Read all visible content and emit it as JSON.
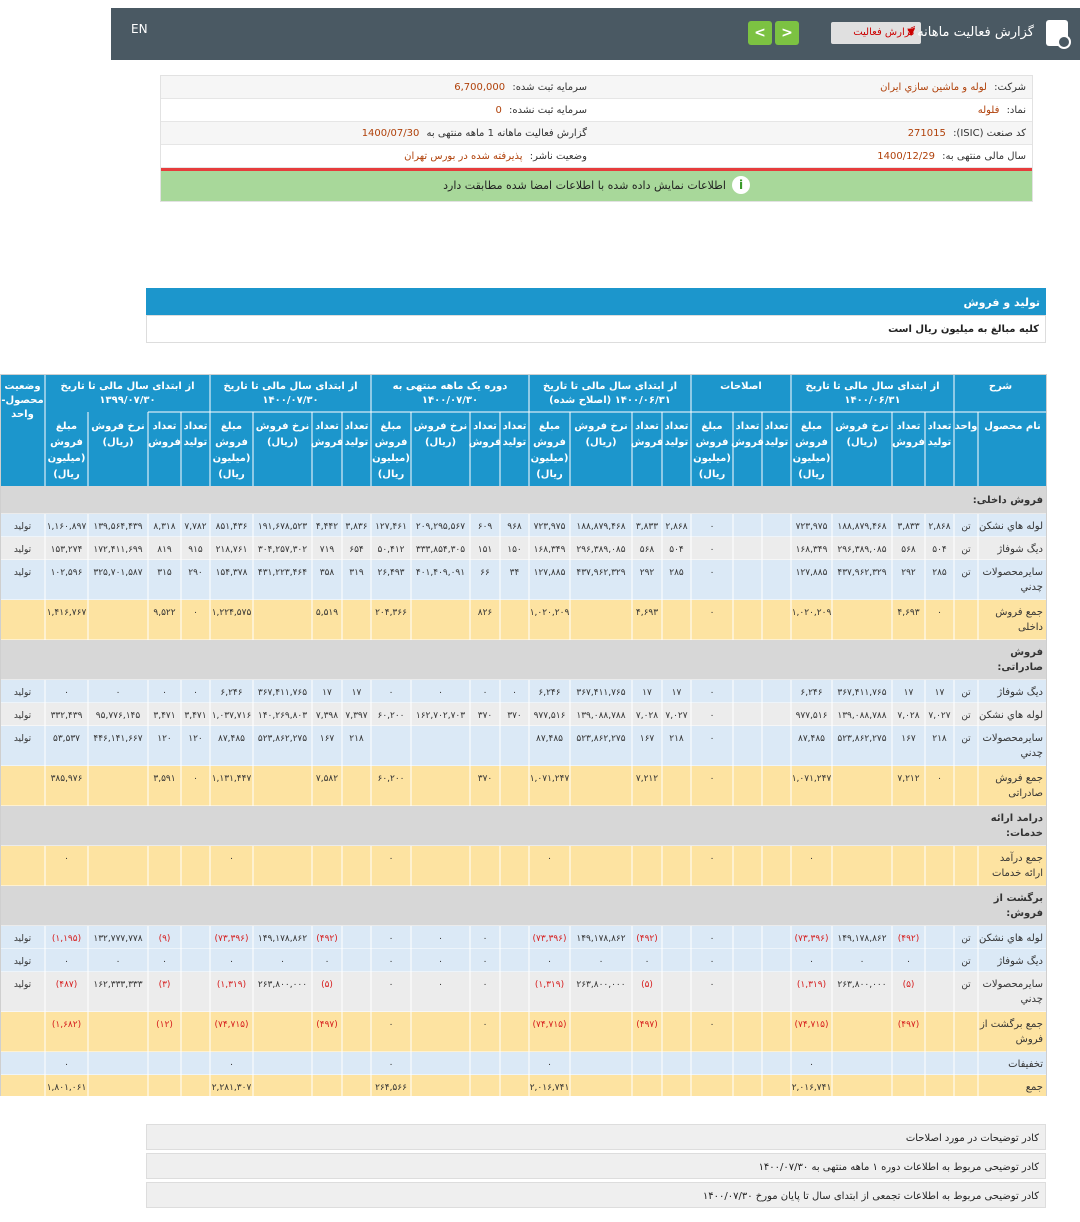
{
  "header": {
    "lang": "EN",
    "title": "گزارش فعالیت ماهانه",
    "report_select": "گزارش فعالیت",
    "next": "<",
    "prev": ">"
  },
  "info": [
    {
      "r_label": "شرکت:",
      "r_value": "لوله و ماشين سازي ايران",
      "l_label": "سرمایه ثبت شده:",
      "l_value": "6,700,000"
    },
    {
      "r_label": "نماد:",
      "r_value": "فلوله",
      "l_label": "سرمایه ثبت نشده:",
      "l_value": "0"
    },
    {
      "r_label": "کد صنعت (ISIC):",
      "r_value": "271015",
      "l_label": "گزارش فعالیت ماهانه 1 ماهه منتهی به",
      "l_value": "1400/07/30"
    },
    {
      "r_label": "سال مالی منتهی به:",
      "r_value": "1400/12/29",
      "l_label": "وضعیت ناشر:",
      "l_value": "پذیرفته شده در بورس تهران"
    }
  ],
  "notice": "اطلاعات نمایش داده شده با اطلاعات امضا شده مطابقت دارد",
  "section": {
    "title": "تولید و فروش",
    "subtitle": "کلیه مبالغ به میلیون ریال است"
  },
  "table": {
    "group_headers": [
      "شرح",
      "از ابتدای سال مالی تا تاریخ ۱۴۰۰/۰۶/۳۱",
      "اصلاحات",
      "از ابتدای سال مالی تا تاریخ ۱۴۰۰/۰۶/۳۱ (اصلاح شده)",
      "دوره یک ماهه منتهی به ۱۴۰۰/۰۷/۳۰",
      "از ابتدای سال مالی تا تاریخ ۱۴۰۰/۰۷/۳۰",
      "از ابتدای سال مالی تا تاریخ ۱۳۹۹/۰۷/۳۰",
      "وضعیت محصول- واحد"
    ],
    "sub_headers": [
      "نام محصول",
      "واحد",
      "تعداد تولید",
      "تعداد فروش",
      "نرخ فروش (ریال)",
      "مبلغ فروش (میلیون ریال)",
      "تعداد تولید",
      "تعداد فروش",
      "مبلغ فروش (میلیون ریال)",
      "تعداد تولید",
      "تعداد فروش",
      "نرخ فروش (ریال)",
      "مبلغ فروش (میلیون ریال)",
      "تعداد تولید",
      "تعداد فروش",
      "نرخ فروش (ریال)",
      "مبلغ فروش (میلیون ریال)",
      "تعداد تولید",
      "تعداد فروش",
      "نرخ فروش (ریال)",
      "مبلغ فروش (میلیون ریال)",
      "تعداد تولید",
      "تعداد فروش",
      "نرخ فروش (ریال)",
      "مبلغ فروش (میلیون ریال)",
      ""
    ],
    "rows": [
      {
        "type": "section",
        "cells": [
          "فروش داخلی:"
        ]
      },
      {
        "type": "odd",
        "cells": [
          "لوله هاي نشكن",
          "تن",
          "۲,۸۶۸",
          "۳,۸۳۳",
          "۱۸۸,۸۷۹,۴۶۸",
          "۷۲۳,۹۷۵",
          "",
          "",
          "۰",
          "۲,۸۶۸",
          "۳,۸۳۳",
          "۱۸۸,۸۷۹,۴۶۸",
          "۷۲۳,۹۷۵",
          "۹۶۸",
          "۶۰۹",
          "۲۰۹,۲۹۵,۵۶۷",
          "۱۲۷,۴۶۱",
          "۳,۸۳۶",
          "۴,۴۴۲",
          "۱۹۱,۶۷۸,۵۲۳",
          "۸۵۱,۴۳۶",
          "۷,۷۸۲",
          "۸,۳۱۸",
          "۱۳۹,۵۶۴,۴۳۹",
          "۱,۱۶۰,۸۹۷",
          "تولید"
        ]
      },
      {
        "type": "even",
        "cells": [
          "ديگ شوفاژ",
          "تن",
          "۵۰۴",
          "۵۶۸",
          "۲۹۶,۳۸۹,۰۸۵",
          "۱۶۸,۳۴۹",
          "",
          "",
          "۰",
          "۵۰۴",
          "۵۶۸",
          "۲۹۶,۳۸۹,۰۸۵",
          "۱۶۸,۳۴۹",
          "۱۵۰",
          "۱۵۱",
          "۳۳۳,۸۵۴,۳۰۵",
          "۵۰,۴۱۲",
          "۶۵۴",
          "۷۱۹",
          "۳۰۴,۲۵۷,۳۰۲",
          "۲۱۸,۷۶۱",
          "۹۱۵",
          "۸۱۹",
          "۱۷۲,۴۱۱,۶۹۹",
          "۱۵۳,۲۷۴",
          "تولید"
        ]
      },
      {
        "type": "odd",
        "cells": [
          "سايرمحصولات چدني",
          "تن",
          "۲۸۵",
          "۲۹۲",
          "۴۳۷,۹۶۲,۳۲۹",
          "۱۲۷,۸۸۵",
          "",
          "",
          "۰",
          "۲۸۵",
          "۲۹۲",
          "۴۳۷,۹۶۲,۳۲۹",
          "۱۲۷,۸۸۵",
          "۳۴",
          "۶۶",
          "۴۰۱,۴۰۹,۰۹۱",
          "۲۶,۴۹۳",
          "۳۱۹",
          "۳۵۸",
          "۴۳۱,۲۲۳,۴۶۴",
          "۱۵۴,۳۷۸",
          "۲۹۰",
          "۳۱۵",
          "۳۲۵,۷۰۱,۵۸۷",
          "۱۰۲,۵۹۶",
          "تولید"
        ]
      },
      {
        "type": "sum",
        "cells": [
          "جمع فروش داخلی",
          "",
          "۰",
          "۴,۶۹۳",
          "",
          "۱,۰۲۰,۲۰۹",
          "",
          "",
          "۰",
          "",
          "۴,۶۹۳",
          "",
          "۱,۰۲۰,۲۰۹",
          "",
          "۸۲۶",
          "",
          "۲۰۴,۳۶۶",
          "",
          "۵,۵۱۹",
          "",
          "۱,۲۲۴,۵۷۵",
          "۰",
          "۹,۵۲۲",
          "",
          "۱,۴۱۶,۷۶۷",
          ""
        ]
      },
      {
        "type": "section",
        "cells": [
          "فروش صادراتی:"
        ]
      },
      {
        "type": "odd",
        "cells": [
          "ديگ شوفاژ",
          "تن",
          "۱۷",
          "۱۷",
          "۳۶۷,۴۱۱,۷۶۵",
          "۶,۲۴۶",
          "",
          "",
          "۰",
          "۱۷",
          "۱۷",
          "۳۶۷,۴۱۱,۷۶۵",
          "۶,۲۴۶",
          "۰",
          "۰",
          "۰",
          "۰",
          "۱۷",
          "۱۷",
          "۳۶۷,۴۱۱,۷۶۵",
          "۶,۲۴۶",
          "۰",
          "۰",
          "۰",
          "۰",
          "تولید"
        ]
      },
      {
        "type": "even",
        "cells": [
          "لوله هاي نشكن",
          "تن",
          "۷,۰۲۷",
          "۷,۰۲۸",
          "۱۳۹,۰۸۸,۷۸۸",
          "۹۷۷,۵۱۶",
          "",
          "",
          "۰",
          "۷,۰۲۷",
          "۷,۰۲۸",
          "۱۳۹,۰۸۸,۷۸۸",
          "۹۷۷,۵۱۶",
          "۳۷۰",
          "۳۷۰",
          "۱۶۲,۷۰۲,۷۰۳",
          "۶۰,۲۰۰",
          "۷,۳۹۷",
          "۷,۳۹۸",
          "۱۴۰,۲۶۹,۸۰۳",
          "۱,۰۳۷,۷۱۶",
          "۳,۴۷۱",
          "۳,۴۷۱",
          "۹۵,۷۷۶,۱۴۵",
          "۳۳۲,۴۳۹",
          "تولید"
        ]
      },
      {
        "type": "odd",
        "cells": [
          "سايرمحصولات چدني",
          "تن",
          "۲۱۸",
          "۱۶۷",
          "۵۲۳,۸۶۲,۲۷۵",
          "۸۷,۴۸۵",
          "",
          "",
          "۰",
          "۲۱۸",
          "۱۶۷",
          "۵۲۳,۸۶۲,۲۷۵",
          "۸۷,۴۸۵",
          "",
          "",
          "",
          "",
          "۲۱۸",
          "۱۶۷",
          "۵۲۳,۸۶۲,۲۷۵",
          "۸۷,۴۸۵",
          "۱۲۰",
          "۱۲۰",
          "۴۴۶,۱۴۱,۶۶۷",
          "۵۳,۵۳۷",
          "تولید"
        ]
      },
      {
        "type": "sum",
        "cells": [
          "جمع فروش صادراتی",
          "",
          "۰",
          "۷,۲۱۲",
          "",
          "۱,۰۷۱,۲۴۷",
          "",
          "",
          "۰",
          "",
          "۷,۲۱۲",
          "",
          "۱,۰۷۱,۲۴۷",
          "",
          "۳۷۰",
          "",
          "۶۰,۲۰۰",
          "",
          "۷,۵۸۲",
          "",
          "۱,۱۳۱,۴۴۷",
          "۰",
          "۳,۵۹۱",
          "",
          "۳۸۵,۹۷۶",
          ""
        ]
      },
      {
        "type": "section",
        "cells": [
          "درامد ارائه خدمات:"
        ]
      },
      {
        "type": "sum",
        "cells": [
          "جمع درآمد ارائه خدمات",
          "",
          "",
          "",
          "",
          "۰",
          "",
          "",
          "۰",
          "",
          "",
          "",
          "۰",
          "",
          "",
          "",
          "۰",
          "",
          "",
          "",
          "۰",
          "",
          "",
          "",
          "۰",
          ""
        ]
      },
      {
        "type": "section",
        "cells": [
          "برگشت از فروش:"
        ]
      },
      {
        "type": "odd",
        "cells": [
          "لوله هاي نشكن",
          "تن",
          "",
          "(۴۹۲)",
          "۱۴۹,۱۷۸,۸۶۲",
          "(۷۳,۳۹۶)",
          "",
          "",
          "۰",
          "",
          "(۴۹۲)",
          "۱۴۹,۱۷۸,۸۶۲",
          "(۷۳,۳۹۶)",
          "",
          "۰",
          "۰",
          "۰",
          "",
          "(۴۹۲)",
          "۱۴۹,۱۷۸,۸۶۲",
          "(۷۳,۳۹۶)",
          "",
          "(۹)",
          "۱۳۲,۷۷۷,۷۷۸",
          "(۱,۱۹۵)",
          "تولید"
        ]
      },
      {
        "type": "odd2",
        "cells": [
          "ديگ شوفاژ",
          "تن",
          "",
          "۰",
          "۰",
          "۰",
          "",
          "",
          "۰",
          "",
          "۰",
          "۰",
          "۰",
          "",
          "۰",
          "۰",
          "۰",
          "",
          "۰",
          "۰",
          "۰",
          "",
          "۰",
          "۰",
          "۰",
          "تولید"
        ]
      },
      {
        "type": "even",
        "cells": [
          "سايرمحصولات چدني",
          "تن",
          "",
          "(۵)",
          "۲۶۳,۸۰۰,۰۰۰",
          "(۱,۳۱۹)",
          "",
          "",
          "۰",
          "",
          "(۵)",
          "۲۶۳,۸۰۰,۰۰۰",
          "(۱,۳۱۹)",
          "",
          "۰",
          "۰",
          "۰",
          "",
          "(۵)",
          "۲۶۳,۸۰۰,۰۰۰",
          "(۱,۳۱۹)",
          "",
          "(۳)",
          "۱۶۲,۳۳۳,۳۳۳",
          "(۴۸۷)",
          "تولید"
        ]
      },
      {
        "type": "sum",
        "cells": [
          "جمع برگشت از فروش",
          "",
          "",
          "(۴۹۷)",
          "",
          "(۷۴,۷۱۵)",
          "",
          "",
          "۰",
          "",
          "(۴۹۷)",
          "",
          "(۷۴,۷۱۵)",
          "",
          "۰",
          "",
          "۰",
          "",
          "(۴۹۷)",
          "",
          "(۷۴,۷۱۵)",
          "",
          "(۱۲)",
          "",
          "(۱,۶۸۲)",
          ""
        ]
      },
      {
        "type": "odd",
        "cells": [
          "تخفیفات",
          "",
          "",
          "",
          "",
          "۰",
          "",
          "",
          "",
          "",
          "",
          "",
          "۰",
          "",
          "",
          "",
          "۰",
          "",
          "",
          "",
          "۰",
          "",
          "",
          "",
          "۰",
          ""
        ]
      },
      {
        "type": "sum",
        "cells": [
          "جمع",
          "",
          "",
          "",
          "",
          "۲,۰۱۶,۷۴۱",
          "",
          "",
          "",
          "",
          "",
          "",
          "۲,۰۱۶,۷۴۱",
          "",
          "",
          "",
          "۲۶۴,۵۶۶",
          "",
          "",
          "",
          "۲,۲۸۱,۳۰۷",
          "",
          "",
          "",
          "۱,۸۰۱,۰۶۱",
          ""
        ]
      }
    ]
  },
  "notes": [
    "کادر توضیحات در مورد اصلاحات",
    "کادر توضیحی مربوط به اطلاعات دوره ۱ ماهه منتهی به ۱۴۰۰/۰۷/۳۰",
    "کادر توضیحی مربوط به اطلاعات تجمعی از ابتدای سال تا پایان مورخ ۱۴۰۰/۰۷/۳۰"
  ]
}
